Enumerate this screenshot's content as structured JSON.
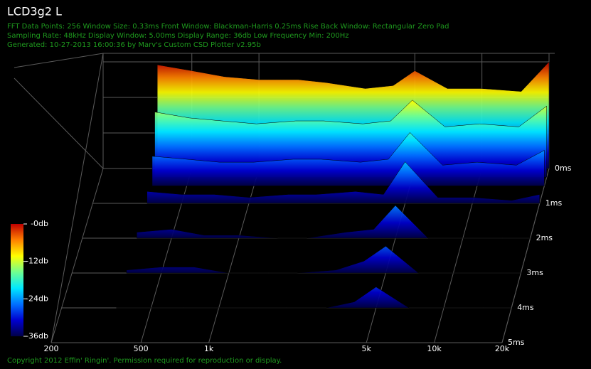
{
  "chart_data": {
    "type": "waterfall",
    "title": "LCD3g2 L",
    "info_lines": [
      "FFT Data Points: 256   Window Size: 0.33ms   Front Window: Blackman-Harris 0.25ms Rise   Back Window: Rectangular Zero Pad",
      "Sampling Rate: 48kHz   Display Window: 5.00ms   Display Range: 36db   Low Frequency Min: 200Hz",
      "Generated: 10-27-2013 16:00:36 by Marv's Custom CSD Plotter v2.95b"
    ],
    "footer": "Copyright 2012 Effin' Ringin'. Permission required for reproduction or display.",
    "log_x": true,
    "xlim": [
      200,
      20000
    ],
    "xticks": [
      200,
      500,
      {
        "value": 1000,
        "label": "1k"
      },
      {
        "value": 5000,
        "label": "5k"
      },
      {
        "value": 10000,
        "label": "10k"
      },
      {
        "value": 20000,
        "label": "20k"
      }
    ],
    "tlim": [
      0,
      5
    ],
    "tticks": [
      {
        "value": 0,
        "label": "0ms"
      },
      {
        "value": 1,
        "label": "1ms"
      },
      {
        "value": 2,
        "label": "2ms"
      },
      {
        "value": 3,
        "label": "3ms"
      },
      {
        "value": 4,
        "label": "4ms"
      },
      {
        "value": 5,
        "label": "5ms"
      }
    ],
    "ylim": [
      -36,
      0
    ],
    "yticks": [
      {
        "value": 0,
        "label": "-0db"
      },
      {
        "value": -12,
        "label": "-12db"
      },
      {
        "value": -24,
        "label": "-24db"
      },
      {
        "value": -36,
        "label": "-36db"
      }
    ],
    "colormap": [
      "#000048",
      "#0000d0",
      "#0070ff",
      "#00e8ff",
      "#70ff90",
      "#ffff00",
      "#ff8000",
      "#c00000"
    ],
    "x": [
      350,
      500,
      700,
      1000,
      1500,
      2000,
      3000,
      4000,
      5000,
      7000,
      10000,
      15000,
      20000
    ],
    "slices": [
      {
        "time": 0,
        "values": [
          -1,
          -3,
          -5,
          -6,
          -6,
          -7,
          -9,
          -8,
          -3,
          -9,
          -9,
          -10,
          0
        ]
      },
      {
        "time": 0.25,
        "values": [
          -14,
          -16,
          -17,
          -18,
          -17,
          -17,
          -18,
          -17,
          -10,
          -19,
          -18,
          -19,
          -12
        ]
      },
      {
        "time": 0.5,
        "values": [
          -26,
          -27,
          -28,
          -28,
          -27,
          -27,
          -28,
          -27,
          -18,
          -29,
          -28,
          -29,
          -24
        ]
      },
      {
        "time": 1,
        "values": [
          -32,
          -33,
          -33,
          -34,
          -33,
          -33,
          -32,
          -33,
          -22,
          -34,
          -34,
          -35,
          -33
        ]
      },
      {
        "time": 2,
        "values": [
          -34,
          -33,
          -35,
          -35,
          -36,
          -36,
          -34,
          -33,
          -25,
          -36,
          -36,
          -36,
          -36
        ]
      },
      {
        "time": 3,
        "values": [
          -35,
          -34,
          -34,
          -36,
          -36,
          -36,
          -35,
          -32,
          -27,
          -36,
          -36,
          -36,
          -36
        ]
      },
      {
        "time": 4,
        "values": [
          -36,
          -36,
          -36,
          -36,
          -36,
          -36,
          -36,
          -34,
          -29,
          -36,
          -36,
          -36,
          -36
        ]
      }
    ]
  }
}
